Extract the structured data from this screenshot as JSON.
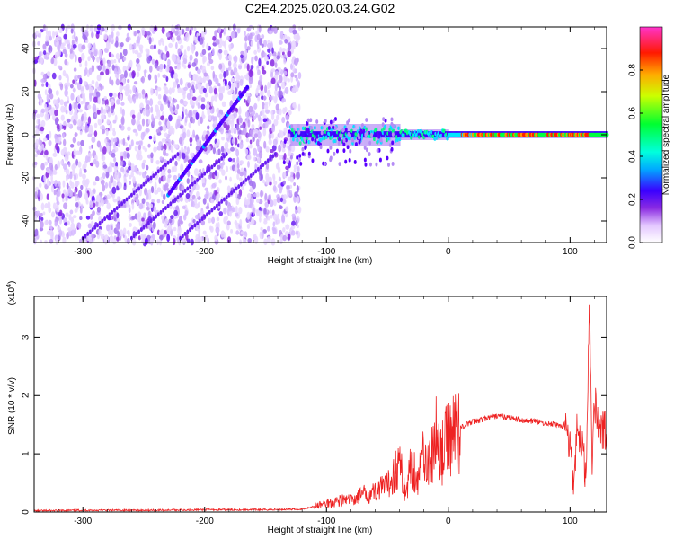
{
  "title": "C2E4.2025.020.03.24.G02",
  "chart_data": [
    {
      "type": "heatmap",
      "title": "C2E4.2025.020.03.24.G02",
      "xlabel": "Height of straight line (km)",
      "ylabel": "Frequency (Hz)",
      "xlim": [
        -340,
        130
      ],
      "ylim": [
        -50,
        50
      ],
      "xticks": [
        -300,
        -200,
        -100,
        0,
        100
      ],
      "xticklabels": [
        "-300",
        "-200",
        "-100",
        "0",
        "100"
      ],
      "yticks": [
        -40,
        -20,
        0,
        20,
        40
      ],
      "yticklabels": [
        "-40",
        "-20",
        "0",
        "20",
        "40"
      ],
      "colorbar": {
        "label": "Normalized spectral amplitude",
        "range": [
          0,
          1
        ],
        "ticks": [
          0.0,
          0.2,
          0.4,
          0.6,
          0.8
        ],
        "ticklabels": [
          "0.0",
          "0.2",
          "0.4",
          "0.6",
          "0.8"
        ],
        "colors": [
          "#ffffff",
          "#c9a6f2",
          "#8a2be2",
          "#3a00ff",
          "#00e5ff",
          "#00ff40",
          "#e0ff00",
          "#ff8c00",
          "#ff0000",
          "#ff33cc"
        ]
      },
      "features": {
        "noise_region_x": [
          -340,
          -130
        ],
        "diagonal_trace": {
          "x": [
            -230,
            -165
          ],
          "y": [
            -28,
            22
          ]
        },
        "tone_trace": {
          "x": [
            -130,
            130
          ],
          "y": 0,
          "peak_amplitude_x": [
            10,
            115
          ]
        }
      }
    },
    {
      "type": "line",
      "xlabel": "Height of straight line (km)",
      "ylabel": "SNR (10 * v/v)",
      "y_multiplier": "(x10^4)",
      "y_multiplier_base": "(x10",
      "y_multiplier_exp": "4",
      "xlim": [
        -340,
        130
      ],
      "ylim": [
        0,
        3.7
      ],
      "xticks": [
        -300,
        -200,
        -100,
        0,
        100
      ],
      "xticklabels": [
        "-300",
        "-200",
        "-100",
        "0",
        "100"
      ],
      "yticks": [
        0,
        1,
        2,
        3
      ],
      "yticklabels": [
        "0",
        "1",
        "2",
        "3"
      ],
      "series": [
        {
          "color": "#ee2222",
          "x": [
            -340,
            -300,
            -250,
            -200,
            -150,
            -120,
            -110,
            -100,
            -90,
            -80,
            -70,
            -60,
            -50,
            -40,
            -35,
            -30,
            -25,
            -20,
            -15,
            -10,
            -5,
            0,
            10,
            20,
            30,
            40,
            50,
            60,
            70,
            80,
            90,
            95,
            100,
            103,
            106,
            110,
            113,
            116,
            118,
            120,
            125,
            130
          ],
          "values": [
            0.02,
            0.03,
            0.03,
            0.04,
            0.04,
            0.05,
            0.1,
            0.15,
            0.2,
            0.2,
            0.3,
            0.35,
            0.45,
            0.85,
            0.3,
            0.9,
            0.5,
            1.1,
            0.8,
            1.3,
            1.0,
            1.3,
            1.45,
            1.55,
            1.6,
            1.65,
            1.62,
            1.58,
            1.56,
            1.52,
            1.5,
            1.45,
            1.2,
            0.5,
            1.5,
            1.1,
            0.6,
            3.7,
            0.8,
            1.9,
            1.4,
            1.38
          ]
        }
      ]
    }
  ]
}
